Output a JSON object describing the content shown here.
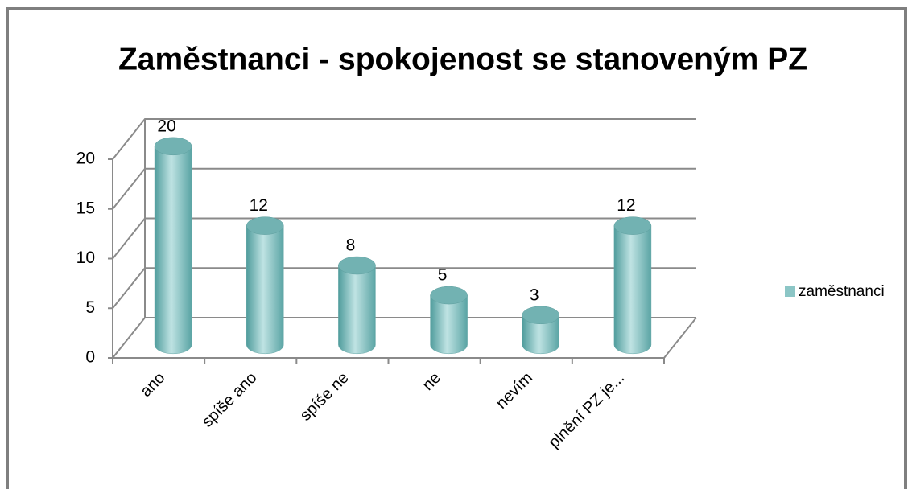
{
  "chart_data": {
    "type": "bar3d",
    "title": "Zaměstnanci - spokojenost se stanoveným PZ",
    "categories": [
      "ano",
      "spíše ano",
      "spíše ne",
      "ne",
      "nevím",
      "plnění PZ je..."
    ],
    "series": [
      {
        "name": "zaměstnanci",
        "color": "#8cc6c6",
        "values": [
          20,
          12,
          8,
          5,
          3,
          12
        ]
      }
    ],
    "ylim": [
      0,
      20
    ],
    "yticks": [
      0,
      5,
      10,
      15,
      20
    ],
    "grid": true,
    "legend": "right"
  }
}
